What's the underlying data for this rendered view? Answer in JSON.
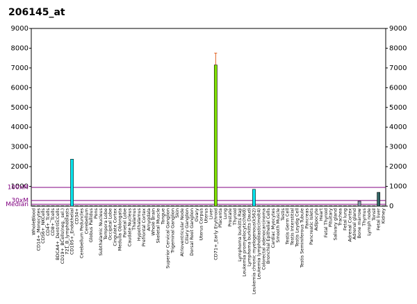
{
  "chart_data": {
    "type": "bar",
    "title": "206145_at",
    "categories": [
      "WholeBlood",
      "CD14+_Monocytes",
      "CD56+_NKCells",
      "CD4+_Tcells",
      "CD8+_Tcells",
      "BDCA4+_DentriticCells",
      "CD19+_BCells(neg._sel.)",
      "721_B_lymphoblasts",
      "CD105+_Endothelial",
      "CD34+",
      "Cerebellum Peduncles",
      "Cerebellum",
      "Globus Pallidus",
      "Pons",
      "Subthalamic Nucleus",
      "Tempora Lobe",
      "Occipital Lobe",
      "Cingulate Cortex",
      "Medulla Oblongata",
      "Parietal Lobe",
      "Caudate Nucleus",
      "Thalamus",
      "Hypothalamus",
      "Prefrontal Cortex",
      "Amygdala",
      "Whole Brain",
      "Skeletal Muscle",
      "Tongue",
      "Superior Cervical Ganglion",
      "Trigeminal Ganglion",
      "Skin",
      "Atrioventricular Node",
      "Ciliary Ganglion",
      "Dorsal Root Ganglion",
      "Ovary",
      "Uterus Corpus",
      "Uterus",
      "Liver",
      "CD71+_Early Erythroid",
      "Placenta",
      "Lung",
      "Prostate",
      "Thyroid",
      "Lymphoma burkitts Raji",
      "Leukemia promyelocytic(hl60)",
      "Lymphoma burkitts Daudi",
      "Leukemia chronic myelogenous(k562)",
      "Leukemia lymphoblastic(molt4)",
      "Colorectal adenocarcinoma",
      "Bronchial Epithelial Cells",
      "Cardiac Myocytes",
      "Smooth Muscle",
      "Testis",
      "Testis Germ Cell",
      "Testis Interstitial",
      "Testis Leydig Cell",
      "Testis Seminiferous Tubule",
      "Pancreas",
      "Pancreatic Islets",
      "Adipocyte",
      "Heart",
      "Fetal Thyroid",
      "Pituitary",
      "Salivary gland",
      "Trachea",
      "Fetal lung",
      "Adrenal Cortex",
      "Adrenal gland",
      "Bone marrow",
      "Thymus",
      "Lymph node",
      "Tonsil",
      "Fetal liver",
      "Kidney"
    ],
    "values": [
      20,
      20,
      20,
      20,
      20,
      20,
      20,
      20,
      2380,
      20,
      20,
      20,
      20,
      20,
      20,
      20,
      20,
      20,
      20,
      20,
      20,
      20,
      20,
      20,
      20,
      20,
      20,
      20,
      20,
      20,
      20,
      20,
      20,
      20,
      20,
      20,
      20,
      20,
      7150,
      20,
      20,
      20,
      20,
      20,
      20,
      20,
      850,
      20,
      20,
      20,
      20,
      20,
      20,
      20,
      20,
      20,
      20,
      20,
      20,
      20,
      20,
      20,
      20,
      20,
      20,
      20,
      20,
      20,
      250,
      20,
      20,
      20,
      700,
      20
    ],
    "errors": [
      null,
      null,
      null,
      null,
      null,
      null,
      null,
      null,
      null,
      null,
      null,
      null,
      null,
      null,
      null,
      null,
      null,
      null,
      null,
      null,
      null,
      null,
      null,
      null,
      null,
      null,
      null,
      null,
      null,
      null,
      null,
      null,
      null,
      null,
      null,
      null,
      null,
      null,
      600,
      null,
      null,
      null,
      null,
      null,
      null,
      null,
      null,
      null,
      null,
      null,
      null,
      null,
      null,
      null,
      null,
      null,
      null,
      null,
      null,
      null,
      null,
      null,
      null,
      null,
      null,
      null,
      null,
      null,
      null,
      null,
      null,
      null,
      null,
      null
    ],
    "color": "#00e5ee",
    "colors": {
      "38": "#80e000",
      "68": "#8899aa",
      "72": "#336666"
    },
    "error_color": "#e06020",
    "ylim": [
      0,
      9000
    ],
    "yticks": [
      1000,
      2000,
      3000,
      4000,
      5000,
      6000,
      7000,
      8000,
      9000
    ],
    "y2lim": [
      0,
      9000
    ],
    "y2ticks": [
      0,
      1000,
      2000,
      3000,
      4000,
      5000,
      6000,
      7000,
      8000,
      9000
    ],
    "reference_lines": [
      {
        "label": "100xM",
        "value": 950
      },
      {
        "label": "30xM",
        "value": 285
      },
      {
        "label": "Median",
        "value": 95
      }
    ],
    "reference_color": "#800080"
  }
}
